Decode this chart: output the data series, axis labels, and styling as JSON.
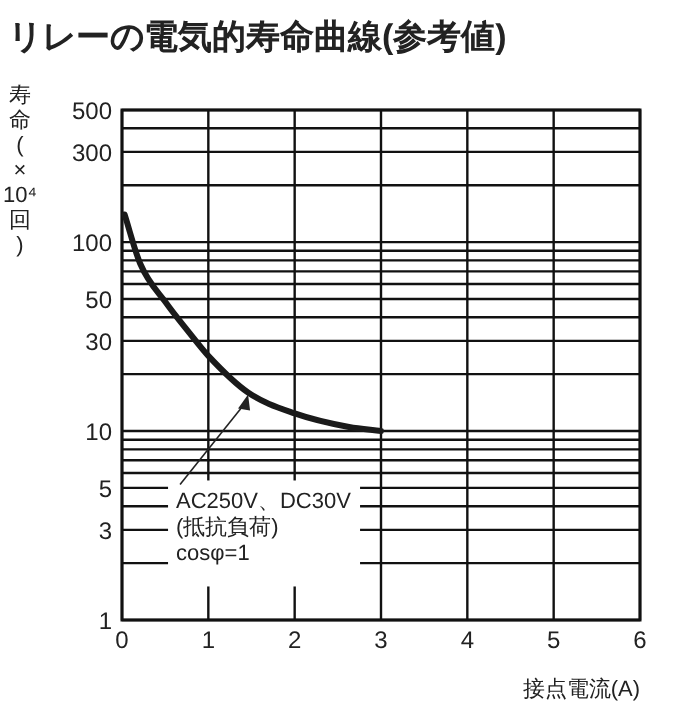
{
  "chart_data": {
    "type": "line",
    "title": "リレーの電気的寿命曲線(参考値)",
    "xlabel": "接点電流(A)",
    "ylabel": "寿命(×10⁴回)",
    "log": "y",
    "grid": true,
    "marker": "none",
    "line_style": "solid",
    "xlim": [
      0,
      6
    ],
    "xticks": [
      0,
      1,
      2,
      3,
      4,
      5,
      6
    ],
    "ylim": [
      1,
      500
    ],
    "yticks": [
      1,
      {
        "value": 2,
        "label": null
      },
      3,
      {
        "value": 4,
        "label": null
      },
      5,
      {
        "value": 6,
        "label": null
      },
      {
        "value": 7,
        "label": null
      },
      {
        "value": 8,
        "label": null
      },
      {
        "value": 9,
        "label": null
      },
      10,
      {
        "value": 20,
        "label": null
      },
      30,
      {
        "value": 40,
        "label": null
      },
      50,
      {
        "value": 60,
        "label": null
      },
      {
        "value": 70,
        "label": null
      },
      {
        "value": 80,
        "label": null
      },
      {
        "value": 90,
        "label": null
      },
      100,
      {
        "value": 200,
        "label": null
      },
      300,
      {
        "value": 400,
        "label": null
      },
      500
    ],
    "series": [
      {
        "color": "#1a1a1a",
        "x": [
          0.03,
          0.21,
          0.52,
          0.76,
          1.0,
          1.46,
          2.0,
          2.63,
          3.0
        ],
        "values": [
          140,
          77,
          47,
          34,
          25,
          16,
          12.4,
          10.5,
          10
        ]
      }
    ],
    "annotations": [
      {
        "text": "AC250V、DC30V\n(抵抗負荷)\ncosφ=1",
        "x": 1.46,
        "y": 16
      }
    ]
  }
}
